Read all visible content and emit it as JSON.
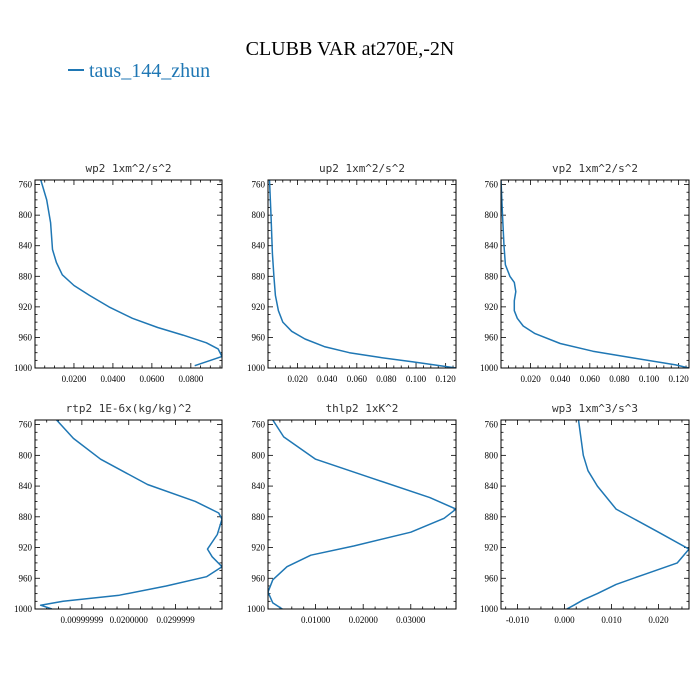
{
  "figure": {
    "title": "CLUBB VAR at270E,-2N",
    "legend": {
      "label": "taus_144_zhun",
      "color": "#1f77b4"
    }
  },
  "chart_data": [
    {
      "type": "line",
      "title": "wp2  1xm^2/s^2",
      "xlim": [
        0.0,
        0.096
      ],
      "xticks": [
        0.02,
        0.04,
        0.06,
        0.08
      ],
      "xtick_labels": [
        "0.0200",
        "0.0400",
        "0.0600",
        "0.0800"
      ],
      "ylim": [
        1000,
        754
      ],
      "yticks": [
        760,
        800,
        840,
        880,
        920,
        960,
        1000
      ],
      "ytick_labels": [
        "760",
        "800",
        "840",
        "880",
        "920",
        "960",
        "1000"
      ],
      "series": [
        {
          "color": "#1f77b4",
          "x": [
            0.003,
            0.006,
            0.008,
            0.009,
            0.011,
            0.014,
            0.02,
            0.028,
            0.038,
            0.05,
            0.063,
            0.076,
            0.088,
            0.094,
            0.096,
            0.09,
            0.082
          ],
          "y": [
            754,
            780,
            810,
            845,
            862,
            878,
            892,
            905,
            920,
            935,
            947,
            957,
            967,
            975,
            985,
            990,
            997
          ]
        }
      ]
    },
    {
      "type": "line",
      "title": "up2  1xm^2/s^2",
      "xlim": [
        0.0,
        0.127
      ],
      "xticks": [
        0.02,
        0.04,
        0.06,
        0.08,
        0.1,
        0.12
      ],
      "xtick_labels": [
        "0.020",
        "0.040",
        "0.060",
        "0.080",
        "0.100",
        "0.120"
      ],
      "ylim": [
        1000,
        754
      ],
      "yticks": [
        760,
        800,
        840,
        880,
        920,
        960,
        1000
      ],
      "ytick_labels": [
        "760",
        "800",
        "840",
        "880",
        "920",
        "960",
        "1000"
      ],
      "series": [
        {
          "color": "#1f77b4",
          "x": [
            0.001,
            0.002,
            0.003,
            0.004,
            0.005,
            0.007,
            0.01,
            0.016,
            0.025,
            0.038,
            0.055,
            0.075,
            0.098,
            0.12,
            0.127
          ],
          "y": [
            754,
            800,
            850,
            880,
            905,
            925,
            940,
            952,
            962,
            972,
            980,
            986,
            992,
            998,
            1000
          ]
        }
      ]
    },
    {
      "type": "line",
      "title": "vp2  1xm^2/s^2",
      "xlim": [
        0.0,
        0.127
      ],
      "xticks": [
        0.02,
        0.04,
        0.06,
        0.08,
        0.1,
        0.12
      ],
      "xtick_labels": [
        "0.020",
        "0.040",
        "0.060",
        "0.080",
        "0.100",
        "0.120"
      ],
      "ylim": [
        1000,
        754
      ],
      "yticks": [
        760,
        800,
        840,
        880,
        920,
        960,
        1000
      ],
      "ytick_labels": [
        "760",
        "800",
        "840",
        "880",
        "920",
        "960",
        "1000"
      ],
      "series": [
        {
          "color": "#1f77b4",
          "x": [
            0.0,
            0.001,
            0.002,
            0.003,
            0.006,
            0.009,
            0.01,
            0.009,
            0.009,
            0.011,
            0.015,
            0.023,
            0.04,
            0.062,
            0.09,
            0.118,
            0.127
          ],
          "y": [
            754,
            800,
            840,
            865,
            880,
            888,
            900,
            912,
            925,
            935,
            945,
            955,
            968,
            978,
            987,
            996,
            1000
          ]
        }
      ]
    },
    {
      "type": "line",
      "title": "rtp2  1E-6x(kg/kg)^2",
      "xlim": [
        0.0,
        0.0399
      ],
      "xticks": [
        0.01,
        0.02,
        0.03
      ],
      "xtick_labels": [
        "0.00999999",
        "0.0200000",
        "0.0299999"
      ],
      "ylim": [
        1000,
        754
      ],
      "yticks": [
        760,
        800,
        840,
        880,
        920,
        960,
        1000
      ],
      "ytick_labels": [
        "760",
        "800",
        "840",
        "880",
        "920",
        "960",
        "1000"
      ],
      "series": [
        {
          "color": "#1f77b4",
          "x": [
            0.0046,
            0.0082,
            0.014,
            0.024,
            0.0342,
            0.0392,
            0.0399,
            0.0389,
            0.0368,
            0.0378,
            0.0399,
            0.0366,
            0.028,
            0.018,
            0.006,
            0.0012,
            0.0036
          ],
          "y": [
            754,
            778,
            805,
            838,
            860,
            875,
            883,
            903,
            922,
            932,
            945,
            958,
            970,
            982,
            990,
            995,
            1000
          ]
        }
      ]
    },
    {
      "type": "line",
      "title": "thlp2  1xK^2",
      "xlim": [
        0.0,
        0.0395
      ],
      "xticks": [
        0.01,
        0.02,
        0.03
      ],
      "xtick_labels": [
        "0.01000",
        "0.02000",
        "0.03000"
      ],
      "ylim": [
        1000,
        754
      ],
      "yticks": [
        760,
        800,
        840,
        880,
        920,
        960,
        1000
      ],
      "ytick_labels": [
        "760",
        "800",
        "840",
        "880",
        "920",
        "960",
        "1000"
      ],
      "series": [
        {
          "color": "#1f77b4",
          "x": [
            0.001,
            0.0033,
            0.01,
            0.022,
            0.034,
            0.0395,
            0.037,
            0.03,
            0.018,
            0.009,
            0.004,
            0.001,
            0.0,
            0.001,
            0.003
          ],
          "y": [
            754,
            776,
            805,
            830,
            855,
            870,
            882,
            900,
            918,
            930,
            945,
            962,
            978,
            992,
            1000
          ]
        }
      ]
    },
    {
      "type": "line",
      "title": "wp3  1xm^3/s^3",
      "xlim": [
        -0.0135,
        0.0265
      ],
      "xticks": [
        -0.01,
        0.0,
        0.01,
        0.02
      ],
      "xtick_labels": [
        "-0.010",
        "0.000",
        "0.010",
        "0.020"
      ],
      "ylim": [
        1000,
        754
      ],
      "yticks": [
        760,
        800,
        840,
        880,
        920,
        960,
        1000
      ],
      "ytick_labels": [
        "760",
        "800",
        "840",
        "880",
        "920",
        "960",
        "1000"
      ],
      "series": [
        {
          "color": "#1f77b4",
          "x": [
            0.003,
            0.004,
            0.005,
            0.007,
            0.011,
            0.02,
            0.0265,
            0.024,
            0.017,
            0.011,
            0.007,
            0.004,
            0.002,
            0.0005
          ],
          "y": [
            754,
            800,
            820,
            840,
            870,
            900,
            922,
            940,
            955,
            968,
            980,
            988,
            995,
            1000
          ]
        }
      ]
    }
  ]
}
